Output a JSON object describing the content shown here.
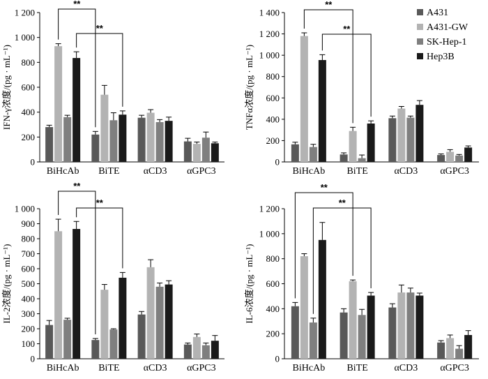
{
  "legend": {
    "items": [
      {
        "label": "A431",
        "color": "#595959"
      },
      {
        "label": "A431-GW",
        "color": "#b3b3b3"
      },
      {
        "label": "SK-Hep-1",
        "color": "#7f7f7f"
      },
      {
        "label": "Hep3B",
        "color": "#1a1a1a"
      }
    ]
  },
  "chart_data": [
    {
      "type": "bar",
      "ylabel": "IFN-γ浓度/(pg · mL⁻¹)",
      "ylim": [
        0,
        1200
      ],
      "yticks": [
        0,
        200,
        400,
        600,
        800,
        1000,
        1200
      ],
      "ytick_labels": [
        "0",
        "200",
        "400",
        "600",
        "800",
        "1 000",
        "1 200"
      ],
      "categories": [
        "BiHcAb",
        "BiTE",
        "αCD3",
        "αGPC3"
      ],
      "series": [
        {
          "name": "A431",
          "values": [
            280,
            220,
            355,
            165
          ],
          "errors": [
            15,
            25,
            20,
            25
          ]
        },
        {
          "name": "A431-GW",
          "values": [
            930,
            540,
            395,
            145
          ],
          "errors": [
            20,
            75,
            25,
            15
          ]
        },
        {
          "name": "SK-Hep-1",
          "values": [
            360,
            335,
            320,
            195
          ],
          "errors": [
            15,
            60,
            20,
            45
          ]
        },
        {
          "name": "Hep3B",
          "values": [
            835,
            380,
            330,
            150
          ],
          "errors": [
            50,
            30,
            30,
            10
          ]
        }
      ],
      "significance": [
        "**",
        "**"
      ]
    },
    {
      "type": "bar",
      "ylabel": "TNFα浓度/(pg · mL⁻¹)",
      "ylim": [
        0,
        1400
      ],
      "yticks": [
        0,
        200,
        400,
        600,
        800,
        1000,
        1200,
        1400
      ],
      "ytick_labels": [
        "0",
        "200",
        "400",
        "600",
        "800",
        "1 000",
        "1 200",
        "1 400"
      ],
      "categories": [
        "BiHcAb",
        "BiTE",
        "αCD3",
        "αGPC3"
      ],
      "series": [
        {
          "name": "A431",
          "values": [
            165,
            70,
            410,
            65
          ],
          "errors": [
            20,
            15,
            20,
            10
          ]
        },
        {
          "name": "A431-GW",
          "values": [
            1180,
            290,
            500,
            95
          ],
          "errors": [
            30,
            35,
            20,
            20
          ]
        },
        {
          "name": "SK-Hep-1",
          "values": [
            140,
            35,
            415,
            60
          ],
          "errors": [
            25,
            30,
            15,
            10
          ]
        },
        {
          "name": "Hep3B",
          "values": [
            955,
            360,
            535,
            135
          ],
          "errors": [
            50,
            25,
            40,
            15
          ]
        }
      ],
      "significance": [
        "**",
        "**"
      ]
    },
    {
      "type": "bar",
      "ylabel": "IL-2浓度/(pg · mL⁻¹)",
      "ylim": [
        0,
        1000
      ],
      "yticks": [
        0,
        100,
        200,
        300,
        400,
        500,
        600,
        700,
        800,
        900,
        1000
      ],
      "ytick_labels": [
        "0",
        "100",
        "200",
        "300",
        "400",
        "500",
        "600",
        "700",
        "800",
        "900",
        "1 000"
      ],
      "categories": [
        "BiHcAb",
        "BiTE",
        "αCD3",
        "αGPC3"
      ],
      "series": [
        {
          "name": "A431",
          "values": [
            225,
            125,
            295,
            95
          ],
          "errors": [
            30,
            10,
            20,
            10
          ]
        },
        {
          "name": "A431-GW",
          "values": [
            850,
            460,
            610,
            145
          ],
          "errors": [
            80,
            35,
            50,
            20
          ]
        },
        {
          "name": "SK-Hep-1",
          "values": [
            260,
            195,
            480,
            90
          ],
          "errors": [
            10,
            5,
            25,
            15
          ]
        },
        {
          "name": "Hep3B",
          "values": [
            865,
            540,
            495,
            120
          ],
          "errors": [
            50,
            35,
            25,
            35
          ]
        }
      ],
      "significance": [
        "**",
        "**"
      ]
    },
    {
      "type": "bar",
      "ylabel": "IL-6浓度/(pg · mL⁻¹)",
      "ylim": [
        0,
        1200
      ],
      "yticks": [
        0,
        200,
        400,
        600,
        800,
        1000,
        1200
      ],
      "ytick_labels": [
        "0",
        "200",
        "400",
        "600",
        "800",
        "1 000",
        "1 200"
      ],
      "categories": [
        "BiHcAb",
        "BiTE",
        "αCD3",
        "αGPC3"
      ],
      "series": [
        {
          "name": "A431",
          "values": [
            420,
            370,
            410,
            130
          ],
          "errors": [
            30,
            30,
            30,
            15
          ]
        },
        {
          "name": "A431-GW",
          "values": [
            820,
            620,
            530,
            165
          ],
          "errors": [
            20,
            10,
            60,
            25
          ]
        },
        {
          "name": "SK-Hep-1",
          "values": [
            290,
            350,
            530,
            80
          ],
          "errors": [
            35,
            45,
            35,
            25
          ]
        },
        {
          "name": "Hep3B",
          "values": [
            950,
            505,
            505,
            190
          ],
          "errors": [
            140,
            25,
            20,
            35
          ]
        }
      ],
      "significance": [
        "**",
        "**"
      ]
    }
  ]
}
